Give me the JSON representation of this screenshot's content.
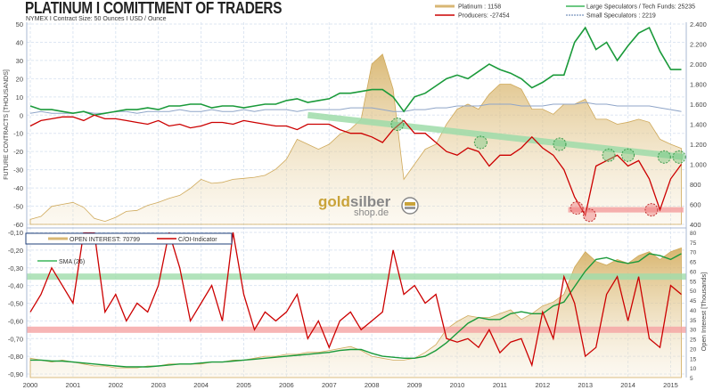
{
  "title": "PLATINUM I COMITTMENT OF TRADERS",
  "subtitle": "NYMEX I   Contract Size: 50 Ounces   I USD / Ounce",
  "watermark": {
    "gold": "gold",
    "silber": "silber",
    "shop": "shop.de"
  },
  "colors": {
    "platinum": "#d8b774",
    "producers": "#cc0000",
    "large": "#1a9a3a",
    "small": "#8fa5c8",
    "oi": "#d4b16a",
    "coi": "#cc0000",
    "sma": "#1a9a3a",
    "band_green": "#9fdcaa",
    "band_red": "#f5a3a3"
  },
  "chart_data": [
    {
      "type": "line",
      "ylabel": "FUTURE CONTRACTS [THOUSANDS]",
      "ylim": [
        -60,
        50
      ],
      "y2lim": [
        400,
        2400
      ],
      "grid": true,
      "legend": "top-right",
      "x_ticks": [
        "2000",
        "2001",
        "2002",
        "2003",
        "2004",
        "2005",
        "2006",
        "2007",
        "2008",
        "2009",
        "2010",
        "2011",
        "2012",
        "2013",
        "2014",
        "2015"
      ],
      "y_ticks": [
        "50",
        "40",
        "30",
        "20",
        "10",
        "0",
        "-10",
        "-20",
        "-30",
        "-40",
        "-50",
        "-60"
      ],
      "y2_ticks": [
        "2.400",
        "2.200",
        "2.000",
        "1.800",
        "1.600",
        "1.400",
        "1.200",
        "1.000",
        "800",
        "600",
        "400"
      ],
      "x_start": 2000,
      "x_step": 0.25,
      "series": [
        {
          "name": "Platinum : 1158",
          "axis": "right",
          "values": [
            450,
            480,
            580,
            600,
            620,
            570,
            460,
            430,
            470,
            530,
            540,
            590,
            620,
            660,
            690,
            760,
            850,
            810,
            820,
            850,
            860,
            870,
            890,
            950,
            1050,
            1250,
            1200,
            1150,
            1200,
            1300,
            1350,
            1450,
            2000,
            2100,
            1750,
            850,
            1000,
            1150,
            1200,
            1400,
            1550,
            1600,
            1550,
            1700,
            1800,
            1800,
            1750,
            1550,
            1550,
            1500,
            1600,
            1600,
            1650,
            1450,
            1450,
            1400,
            1420,
            1450,
            1420,
            1250,
            1200,
            1158
          ]
        },
        {
          "name": "Producers: -27454",
          "axis": "left",
          "values": [
            -6,
            -3,
            -2,
            -1,
            -1,
            -3,
            0,
            -2,
            -2,
            -3,
            -4,
            -5,
            -3,
            -6,
            -5,
            -7,
            -6,
            -4,
            -4,
            -5,
            -3,
            -4,
            -5,
            -6,
            -6,
            -8,
            -5,
            -5,
            -5,
            -8,
            -10,
            -10,
            -12,
            -15,
            -8,
            -3,
            -10,
            -10,
            -15,
            -20,
            -22,
            -18,
            -20,
            -28,
            -22,
            -22,
            -18,
            -12,
            -18,
            -22,
            -30,
            -45,
            -55,
            -28,
            -25,
            -22,
            -28,
            -25,
            -35,
            -52,
            -35,
            -27
          ]
        },
        {
          "name": "Large Speculators / Tech Funds:  25235",
          "axis": "left",
          "values": [
            5,
            3,
            3,
            2,
            1,
            2,
            0,
            1,
            2,
            3,
            3,
            4,
            3,
            5,
            5,
            6,
            6,
            4,
            5,
            5,
            4,
            5,
            6,
            6,
            8,
            9,
            7,
            8,
            9,
            12,
            12,
            13,
            14,
            14,
            10,
            2,
            10,
            12,
            16,
            20,
            22,
            20,
            24,
            28,
            25,
            23,
            20,
            15,
            18,
            22,
            22,
            40,
            48,
            36,
            40,
            30,
            38,
            45,
            48,
            35,
            25,
            25
          ]
        },
        {
          "name": "Small Speculators : 2219",
          "axis": "left",
          "values": [
            1,
            2,
            1,
            1,
            1,
            2,
            1,
            1,
            2,
            2,
            1,
            2,
            2,
            2,
            3,
            2,
            2,
            3,
            2,
            2,
            3,
            2,
            3,
            3,
            3,
            2,
            3,
            3,
            3,
            3,
            4,
            4,
            4,
            3,
            2,
            2,
            3,
            3,
            4,
            4,
            5,
            5,
            5,
            6,
            6,
            6,
            5,
            5,
            5,
            6,
            6,
            6,
            7,
            6,
            6,
            5,
            5,
            5,
            5,
            4,
            3,
            2
          ]
        }
      ],
      "annotations": {
        "trend_line": [
          [
            2006.5,
            0
          ],
          [
            2015.3,
            -23
          ]
        ],
        "support_band": {
          "from": 2012.6,
          "to": 2015.3,
          "value": -52
        },
        "green_markers": [
          [
            2008.6,
            -5
          ],
          [
            2010.55,
            -15
          ],
          [
            2012.4,
            -16
          ],
          [
            2013.55,
            -22
          ],
          [
            2014.0,
            -22
          ],
          [
            2014.85,
            -23
          ],
          [
            2015.2,
            -23
          ]
        ],
        "red_markers": [
          [
            2012.8,
            -51
          ],
          [
            2013.1,
            -55
          ],
          [
            2014.55,
            -52
          ]
        ]
      }
    },
    {
      "type": "line",
      "ylabel": "Open Interest   [Thousands]",
      "ylim": [
        -0.9,
        -0.1
      ],
      "y2lim": [
        5,
        80
      ],
      "grid": true,
      "legend": "top-left",
      "y_ticks": [
        "-0,10",
        "-0,20",
        "-0,30",
        "-0,40",
        "-0,50",
        "-0,60",
        "-0,70",
        "-0,80",
        "-0,90"
      ],
      "y2_ticks": [
        "80",
        "75",
        "70",
        "65",
        "60",
        "55",
        "50",
        "45",
        "40",
        "35",
        "30",
        "25",
        "20",
        "15",
        "10",
        "5"
      ],
      "bands": {
        "upper": -0.35,
        "lower": -0.65
      },
      "x_start": 2000,
      "x_step": 0.25,
      "series": [
        {
          "name": "OPEN INTEREST: 70799",
          "axis": "right",
          "values": [
            15,
            14,
            13,
            14,
            13,
            12,
            11,
            11,
            10,
            10,
            10,
            11,
            11,
            12,
            12,
            12,
            12,
            13,
            13,
            14,
            14,
            15,
            16,
            16,
            17,
            17,
            18,
            18,
            19,
            20,
            21,
            19,
            16,
            15,
            14,
            14,
            15,
            18,
            22,
            30,
            34,
            37,
            36,
            36,
            38,
            40,
            35,
            38,
            42,
            44,
            48,
            62,
            70,
            65,
            63,
            66,
            64,
            68,
            70,
            66,
            70,
            72
          ]
        },
        {
          "name": "C/OI-Indicator",
          "axis": "left",
          "values": [
            -0.55,
            -0.45,
            -0.3,
            -0.4,
            -0.5,
            -0.1,
            -0.1,
            -0.55,
            -0.45,
            -0.6,
            -0.5,
            -0.55,
            -0.4,
            -0.1,
            -0.3,
            -0.6,
            -0.5,
            -0.4,
            -0.6,
            -0.1,
            -0.45,
            -0.65,
            -0.55,
            -0.6,
            -0.55,
            -0.45,
            -0.7,
            -0.6,
            -0.75,
            -0.6,
            -0.55,
            -0.65,
            -0.6,
            -0.55,
            -0.2,
            -0.45,
            -0.4,
            -0.5,
            -0.45,
            -0.7,
            -0.72,
            -0.7,
            -0.75,
            -0.65,
            -0.78,
            -0.72,
            -0.7,
            -0.85,
            -0.55,
            -0.7,
            -0.35,
            -0.5,
            -0.8,
            -0.75,
            -0.45,
            -0.35,
            -0.6,
            -0.35,
            -0.7,
            -0.75,
            -0.4,
            -0.45
          ]
        },
        {
          "name": "SMA (26)",
          "axis": "right",
          "values": [
            14,
            14,
            13.5,
            13.5,
            13,
            12.5,
            12,
            11.5,
            11,
            10.5,
            10.5,
            10.5,
            11,
            11.5,
            12,
            12,
            12.5,
            13,
            13,
            13.5,
            14,
            14.5,
            15,
            15.5,
            16,
            16.5,
            17,
            17.5,
            18,
            19,
            19.5,
            19.5,
            17.5,
            16,
            15.5,
            15,
            15,
            16,
            19,
            23,
            28,
            33,
            36,
            35,
            35,
            38,
            39,
            38,
            38,
            42,
            44,
            52,
            60,
            66,
            67,
            65,
            64,
            65,
            69,
            68,
            66,
            69
          ]
        }
      ]
    }
  ]
}
